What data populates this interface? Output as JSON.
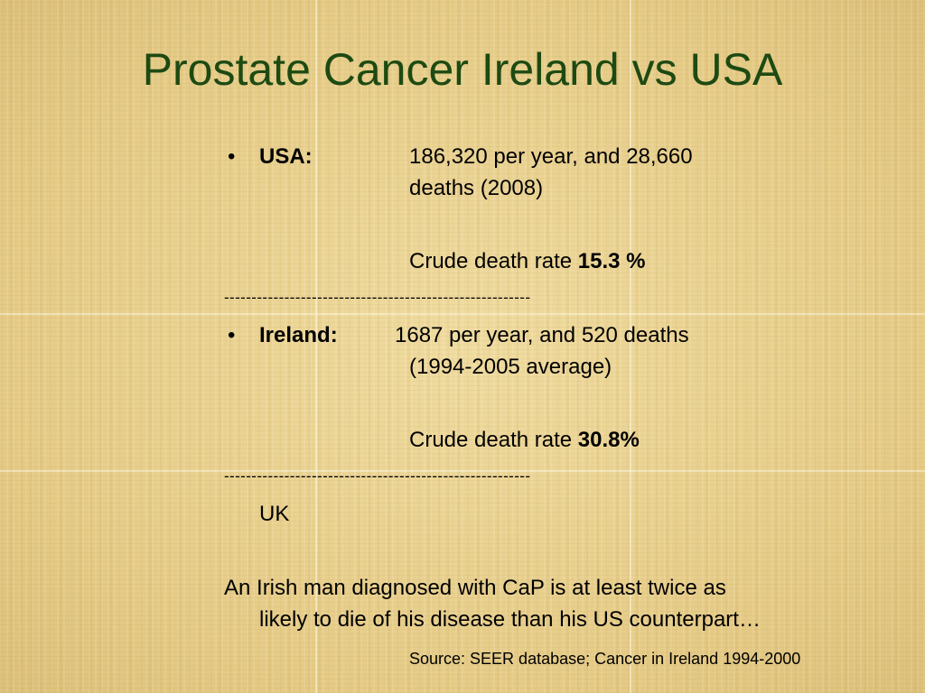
{
  "slide": {
    "title": "Prostate Cancer Ireland vs USA",
    "bullet_symbol": "•",
    "usa": {
      "label": "USA:",
      "line1": "186,320 per year, and 28,660",
      "line2": "deaths (2008)",
      "rate_text": "Crude death rate ",
      "rate_value": "15.3 %"
    },
    "separator": "--------------------------------------------------------",
    "ireland": {
      "label": "Ireland:",
      "line1": "1687 per year, and 520 deaths",
      "line2": "(1994-2005 average)",
      "rate_text": "Crude death rate ",
      "rate_value": "30.8%"
    },
    "uk": "UK",
    "conclusion": {
      "line1": "An Irish man diagnosed with CaP is at least twice as",
      "line2": "likely to die of his disease than his US counterpart…"
    },
    "source": "Source: SEER database; Cancer in Ireland 1994-2000"
  }
}
